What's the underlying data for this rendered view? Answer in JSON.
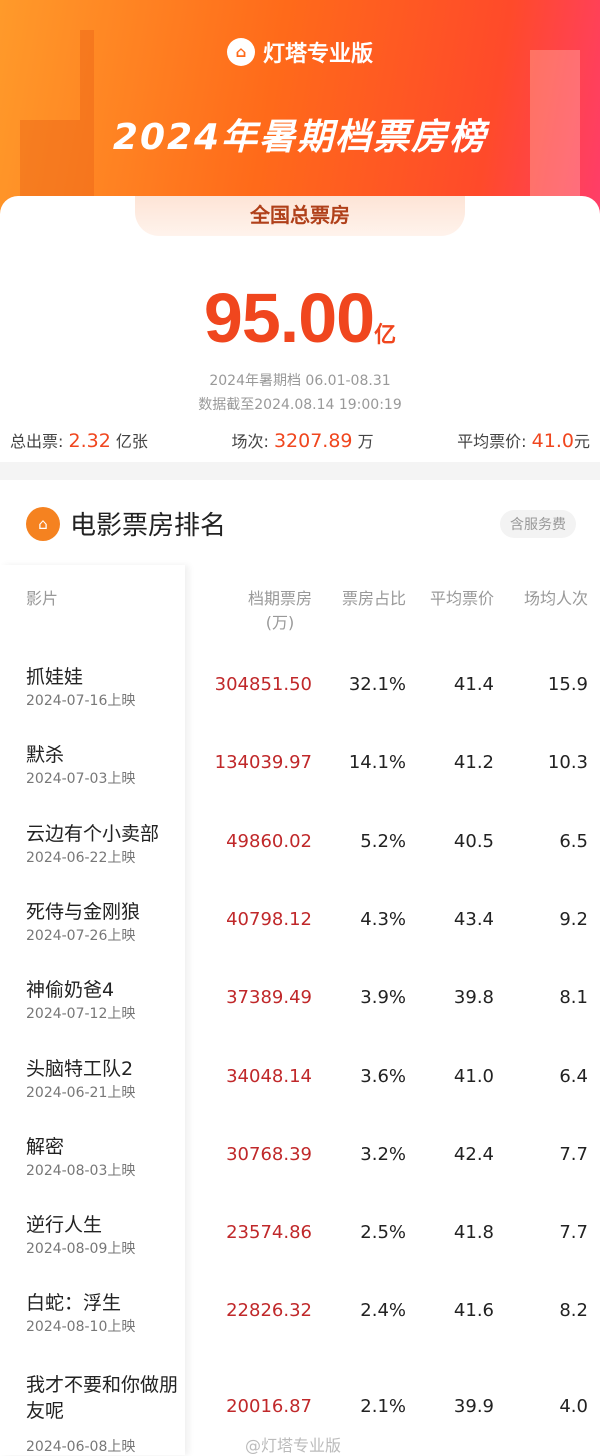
{
  "header": {
    "brand": "灯塔专业版",
    "title": "2024年暑期档票房榜"
  },
  "summary": {
    "tab": "全国总票房",
    "total": "95.00",
    "total_unit": "亿",
    "period": "2024年暑期档 06.01-08.31",
    "updated": "数据截至2024.08.14 19:00:19",
    "stats": [
      {
        "label": "总出票:",
        "value": "2.32",
        "unit": "亿张"
      },
      {
        "label": "场次:",
        "value": "3207.89",
        "unit": "万"
      },
      {
        "label": "平均票价:",
        "value": "41.0",
        "unit": "元"
      }
    ]
  },
  "ranking": {
    "title": "电影票房排名",
    "tag": "含服务费",
    "columns": [
      "影片",
      "档期票房",
      "(万)",
      "票房占比",
      "平均票价",
      "场均人次"
    ],
    "rows": [
      {
        "name": "抓娃娃",
        "date": "2024-07-16上映",
        "box": "304851.50",
        "share": "32.1%",
        "price": "41.4",
        "avg": "15.9"
      },
      {
        "name": "默杀",
        "date": "2024-07-03上映",
        "box": "134039.97",
        "share": "14.1%",
        "price": "41.2",
        "avg": "10.3"
      },
      {
        "name": "云边有个小卖部",
        "date": "2024-06-22上映",
        "box": "49860.02",
        "share": "5.2%",
        "price": "40.5",
        "avg": "6.5"
      },
      {
        "name": "死侍与金刚狼",
        "date": "2024-07-26上映",
        "box": "40798.12",
        "share": "4.3%",
        "price": "43.4",
        "avg": "9.2"
      },
      {
        "name": "神偷奶爸4",
        "date": "2024-07-12上映",
        "box": "37389.49",
        "share": "3.9%",
        "price": "39.8",
        "avg": "8.1"
      },
      {
        "name": "头脑特工队2",
        "date": "2024-06-21上映",
        "box": "34048.14",
        "share": "3.6%",
        "price": "41.0",
        "avg": "6.4"
      },
      {
        "name": "解密",
        "date": "2024-08-03上映",
        "box": "30768.39",
        "share": "3.2%",
        "price": "42.4",
        "avg": "7.7"
      },
      {
        "name": "逆行人生",
        "date": "2024-08-09上映",
        "box": "23574.86",
        "share": "2.5%",
        "price": "41.8",
        "avg": "7.7"
      },
      {
        "name": "白蛇：浮生",
        "date": "2024-08-10上映",
        "box": "22826.32",
        "share": "2.4%",
        "price": "41.6",
        "avg": "8.2"
      },
      {
        "name": "我才不要和你做朋友呢",
        "date": "2024-06-08上映",
        "box": "20016.87",
        "share": "2.1%",
        "price": "39.9",
        "avg": "4.0"
      }
    ]
  },
  "watermark": "@灯塔专业版",
  "colors": {
    "accent": "#f0461e",
    "box_office": "#c0282a"
  }
}
